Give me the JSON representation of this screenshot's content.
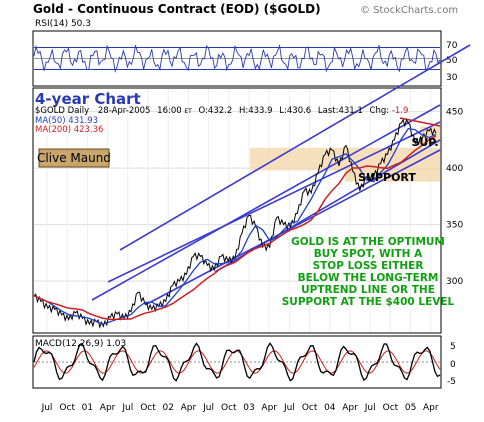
{
  "header": {
    "title": "Gold - Continuous Contract (EOD) ($GOLD)",
    "watermark": "© StockCharts.com"
  },
  "rsi": {
    "label": "RSI(14) 50.3",
    "levels": [
      70,
      50,
      30
    ],
    "tick_labels": [
      "70",
      "50",
      "30"
    ]
  },
  "main": {
    "period_label": "4-year Chart",
    "info_line": {
      "symbol": "$GOLD Daily",
      "date": "28-Apr-2005",
      "time": "16:00",
      "tz": "ET",
      "open": "O:432.2",
      "high": "H:433.9",
      "low": "L:430.6",
      "last": "Last:431.1",
      "chg_label": "Chg:",
      "chg_value": "-1.9"
    },
    "ma50_label": "MA(50) 431.93",
    "ma200_label": "MA(200) 423.36",
    "author": "Clive Maund",
    "sup_label": "SUP.",
    "support_label": "SUPPORT",
    "annotation_lines": [
      "GOLD IS AT THE OPTIMUM",
      "BUY SPOT, WITH A",
      "STOP LOSS EITHER",
      "BELOW THE LONG-TERM",
      "UPTREND LINE OR THE",
      "SUPPORT AT THE $400 LEVEL"
    ]
  },
  "macd": {
    "label": "MACD(12,26,9) 1.03",
    "tick_labels": [
      "5",
      "0",
      "-5"
    ]
  },
  "x_axis": {
    "labels": [
      "Jul",
      "Oct",
      "01",
      "Apr",
      "Jul",
      "Oct",
      "02",
      "Apr",
      "Jul",
      "Oct",
      "03",
      "Apr",
      "Jul",
      "Oct",
      "04",
      "Apr",
      "Jul",
      "Oct",
      "05",
      "Apr"
    ]
  },
  "colors": {
    "price": "#000000",
    "ma50": "#1f3fc8",
    "ma200": "#cc2020",
    "channel": "#3a3ad0",
    "support_zone": "#f5d9b0",
    "annotation": "#11a011",
    "resistance": "#cc2020",
    "label_blue": "#2a3ab0"
  },
  "chart_data": {
    "type": "line",
    "title": "Gold - Continuous Contract (EOD) ($GOLD)",
    "x_range": [
      "2000-06",
      "2005-04"
    ],
    "x_ticks": [
      "Jul",
      "Oct",
      "01",
      "Apr",
      "Jul",
      "Oct",
      "02",
      "Apr",
      "Jul",
      "Oct",
      "03",
      "Apr",
      "Jul",
      "Oct",
      "04",
      "Apr",
      "Jul",
      "Oct",
      "05",
      "Apr"
    ],
    "y_ticks": [
      300,
      350,
      400,
      450
    ],
    "ylim": [
      255,
      470
    ],
    "price_series": {
      "name": "$GOLD",
      "x": [
        "2000-06",
        "2000-07",
        "2000-08",
        "2000-09",
        "2000-10",
        "2000-11",
        "2000-12",
        "2001-01",
        "2001-02",
        "2001-03",
        "2001-04",
        "2001-05",
        "2001-06",
        "2001-07",
        "2001-08",
        "2001-09",
        "2001-10",
        "2001-11",
        "2001-12",
        "2002-01",
        "2002-02",
        "2002-03",
        "2002-04",
        "2002-05",
        "2002-06",
        "2002-07",
        "2002-08",
        "2002-09",
        "2002-10",
        "2002-11",
        "2002-12",
        "2003-01",
        "2003-02",
        "2003-03",
        "2003-04",
        "2003-05",
        "2003-06",
        "2003-07",
        "2003-08",
        "2003-09",
        "2003-10",
        "2003-11",
        "2003-12",
        "2004-01",
        "2004-02",
        "2004-03",
        "2004-04",
        "2004-05",
        "2004-06",
        "2004-07",
        "2004-08",
        "2004-09",
        "2004-10",
        "2004-11",
        "2004-12",
        "2005-01",
        "2005-02",
        "2005-03",
        "2005-04"
      ],
      "values": [
        287,
        282,
        276,
        275,
        270,
        266,
        272,
        267,
        262,
        264,
        260,
        268,
        271,
        267,
        273,
        290,
        280,
        275,
        278,
        282,
        296,
        300,
        306,
        322,
        322,
        314,
        310,
        322,
        318,
        320,
        342,
        358,
        348,
        330,
        330,
        356,
        350,
        348,
        360,
        380,
        378,
        396,
        412,
        416,
        402,
        420,
        397,
        380,
        392,
        392,
        404,
        412,
        425,
        440,
        440,
        422,
        426,
        433,
        431
      ]
    },
    "ma50": {
      "name": "MA(50)",
      "last": 431.93
    },
    "ma200": {
      "name": "MA(200)",
      "last": 423.36
    },
    "support_level": 400,
    "rsi": {
      "name": "RSI(14)",
      "last": 50.3,
      "ylim": [
        0,
        100
      ]
    },
    "macd": {
      "name": "MACD(12,26,9)",
      "last": 1.03,
      "ylim": [
        -8,
        8
      ]
    }
  }
}
